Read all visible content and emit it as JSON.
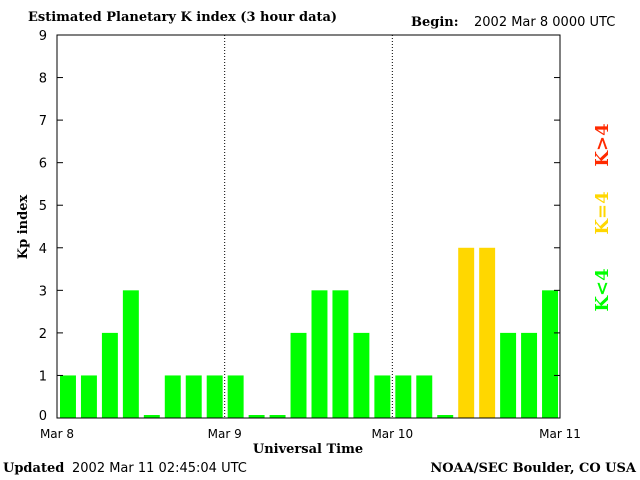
{
  "header": {
    "title": "Estimated Planetary K index (3 hour data)",
    "begin_label": "Begin:",
    "begin_value": "2002 Mar 8 0000 UTC"
  },
  "footer": {
    "updated_label": "Updated",
    "updated_value": "2002 Mar 11 02:45:04 UTC",
    "credit": "NOAA/SEC Boulder, CO USA"
  },
  "colors": {
    "low": "#00ff00",
    "mid": "#ffd700",
    "high": "#ff2a00",
    "axis": "#000000"
  },
  "chart_data": {
    "type": "bar",
    "xlabel": "Universal Time",
    "ylabel": "Kp index",
    "ylim": [
      0,
      9
    ],
    "yticks": [
      "0",
      "1",
      "2",
      "3",
      "4",
      "5",
      "6",
      "7",
      "8",
      "9"
    ],
    "xticks": [
      "Mar 8",
      "Mar 9",
      "Mar 10",
      "Mar 11"
    ],
    "bins_per_day": 8,
    "values": [
      1,
      1,
      2,
      3,
      0,
      1,
      1,
      1,
      1,
      0,
      0,
      2,
      3,
      3,
      2,
      1,
      1,
      1,
      0,
      4,
      4,
      2,
      2,
      3
    ],
    "legend": [
      {
        "label": "K<4",
        "color_key": "low"
      },
      {
        "label": "K=4",
        "color_key": "mid"
      },
      {
        "label": "K>4",
        "color_key": "high"
      }
    ],
    "legend_position": "right",
    "day_separators": "dotted"
  }
}
